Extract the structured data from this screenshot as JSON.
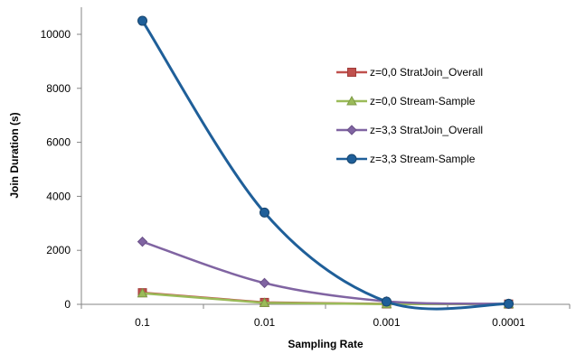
{
  "chart_data": {
    "type": "line",
    "title": "",
    "xlabel": "Sampling Rate",
    "ylabel": "Join Duration (s)",
    "categories": [
      "0.1",
      "0.01",
      "0.001",
      "0.0001"
    ],
    "ylim": [
      0,
      10000
    ],
    "yticks": [
      "0",
      "2000",
      "4000",
      "6000",
      "8000",
      "10000"
    ],
    "grid": false,
    "legend_position": "right",
    "series": [
      {
        "name": "z=0,0 StratJoin_Overall",
        "values": [
          430,
          70,
          15,
          10
        ],
        "color": "#C0504D",
        "marker": "square",
        "smooth": false
      },
      {
        "name": "z=0,0 Stream-Sample",
        "values": [
          410,
          55,
          10,
          8
        ],
        "color": "#9BBB59",
        "marker": "triangle",
        "smooth": false
      },
      {
        "name": "z=3,3 StratJoin_Overall",
        "values": [
          2320,
          790,
          110,
          20
        ],
        "color": "#8064A2",
        "marker": "diamond",
        "smooth": true
      },
      {
        "name": "z=3,3 Stream-Sample",
        "values": [
          10500,
          3400,
          100,
          20
        ],
        "color": "#1F5F99",
        "marker": "circle",
        "smooth": true
      }
    ]
  }
}
